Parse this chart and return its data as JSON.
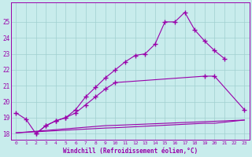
{
  "xlabel": "Windchill (Refroidissement éolien,°C)",
  "xlim": [
    -0.5,
    23.5
  ],
  "ylim": [
    17.6,
    26.2
  ],
  "xticks": [
    0,
    1,
    2,
    3,
    4,
    5,
    6,
    7,
    8,
    9,
    10,
    11,
    12,
    13,
    14,
    15,
    16,
    17,
    18,
    19,
    20,
    21,
    22,
    23
  ],
  "yticks": [
    18,
    19,
    20,
    21,
    22,
    23,
    24,
    25
  ],
  "background_color": "#c8ecec",
  "line_color": "#9900aa",
  "grid_color": "#a0d0d0",
  "line1_x": [
    0,
    1,
    2,
    3,
    4,
    5,
    6,
    7,
    8,
    9,
    10,
    11,
    12,
    13,
    14,
    15,
    16,
    17,
    18,
    19,
    20,
    21
  ],
  "line1_y": [
    19.3,
    18.9,
    18.0,
    18.5,
    18.8,
    19.0,
    19.5,
    20.3,
    20.9,
    21.5,
    22.0,
    22.5,
    22.9,
    23.0,
    23.6,
    25.0,
    25.0,
    25.6,
    24.5,
    23.8,
    23.2,
    22.7
  ],
  "line2_x": [
    2,
    3,
    4,
    5,
    6,
    7,
    8,
    9,
    10,
    19,
    20,
    23
  ],
  "line2_y": [
    18.0,
    18.5,
    18.8,
    19.0,
    19.3,
    19.8,
    20.3,
    20.8,
    21.2,
    21.6,
    21.6,
    19.5
  ],
  "line3_x": [
    0,
    9,
    10,
    23
  ],
  "line3_y": [
    18.05,
    18.5,
    18.52,
    18.85
  ],
  "line4_x": [
    0,
    9,
    10,
    19,
    20,
    23
  ],
  "line4_y": [
    18.05,
    18.35,
    18.37,
    18.65,
    18.65,
    18.85
  ]
}
